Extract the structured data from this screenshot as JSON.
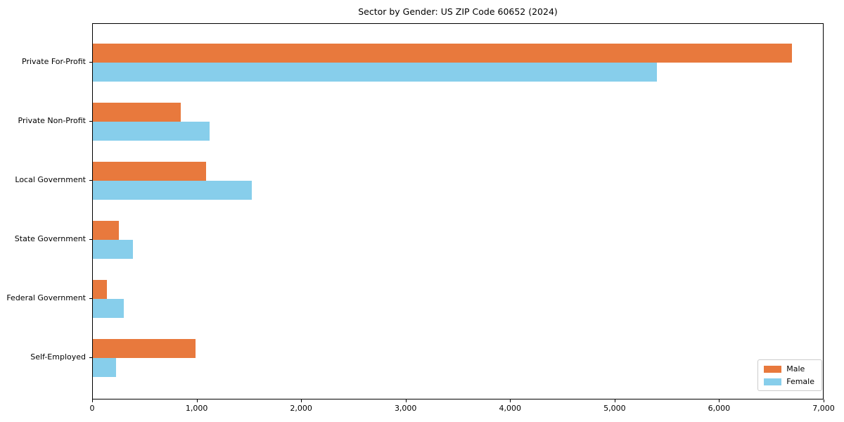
{
  "page": {
    "title": "Sector by Gender: US ZIP Code 60652 (2024)"
  },
  "chart_data": {
    "type": "bar",
    "orientation": "horizontal",
    "title": "Sector by Gender: US ZIP Code 60652 (2024)",
    "categories": [
      "Private For-Profit",
      "Private Non-Profit",
      "Local Government",
      "State Government",
      "Federal Government",
      "Self-Employed"
    ],
    "series": [
      {
        "name": "Male",
        "color": "#e8793d",
        "values": [
          6690,
          840,
          1080,
          250,
          135,
          985
        ]
      },
      {
        "name": "Female",
        "color": "#87ceeb",
        "values": [
          5400,
          1120,
          1520,
          385,
          295,
          220
        ]
      }
    ],
    "xlabel": "",
    "ylabel": "",
    "xlim": [
      0,
      7000
    ],
    "xticks": [
      0,
      1000,
      2000,
      3000,
      4000,
      5000,
      6000,
      7000
    ],
    "xtick_labels": [
      "0",
      "1,000",
      "2,000",
      "3,000",
      "4,000",
      "5,000",
      "6,000",
      "7,000"
    ],
    "grid": false,
    "legend": {
      "position": "lower right",
      "entries": [
        {
          "label": "Male",
          "color": "#e8793d"
        },
        {
          "label": "Female",
          "color": "#87ceeb"
        }
      ]
    }
  }
}
